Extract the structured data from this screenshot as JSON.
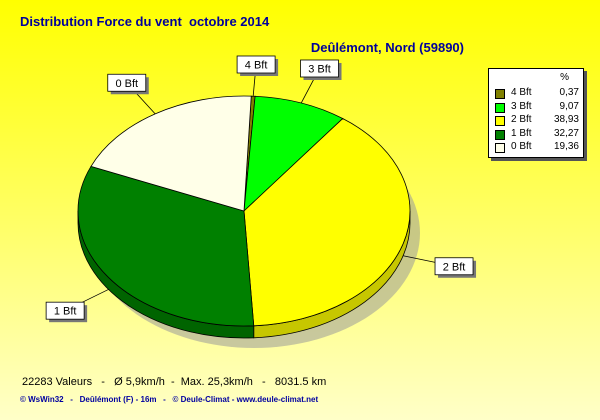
{
  "title": "Distribution Force du vent  octobre 2014",
  "subtitle": "Deûlémont, Nord (59890)",
  "chart_data": {
    "type": "pie",
    "title": "Distribution Force du vent  octobre 2014",
    "subtitle": "Deûlémont, Nord (59890)",
    "legend_header": "%",
    "legend_placement": "top-right",
    "slices": [
      {
        "label": "4 Bft",
        "value": 0.37,
        "value_text": "0,37",
        "color": "#808000"
      },
      {
        "label": "3 Bft",
        "value": 9.07,
        "value_text": "9,07",
        "color": "#00ff00"
      },
      {
        "label": "2 Bft",
        "value": 38.93,
        "value_text": "38,93",
        "color": "#ffff00"
      },
      {
        "label": "1 Bft",
        "value": 32.27,
        "value_text": "32,27",
        "color": "#008000"
      },
      {
        "label": "0 Bft",
        "value": 19.36,
        "value_text": "19,36",
        "color": "#ffffe8"
      }
    ]
  },
  "footer": "22283 Valeurs   -   Ø 5,9km/h  -  Max. 25,3km/h   -   8031.5 km",
  "credit": "© WsWin32   -   Deûlémont (F) - 16m   -   © Deule-Climat - www.deule-climat.net"
}
